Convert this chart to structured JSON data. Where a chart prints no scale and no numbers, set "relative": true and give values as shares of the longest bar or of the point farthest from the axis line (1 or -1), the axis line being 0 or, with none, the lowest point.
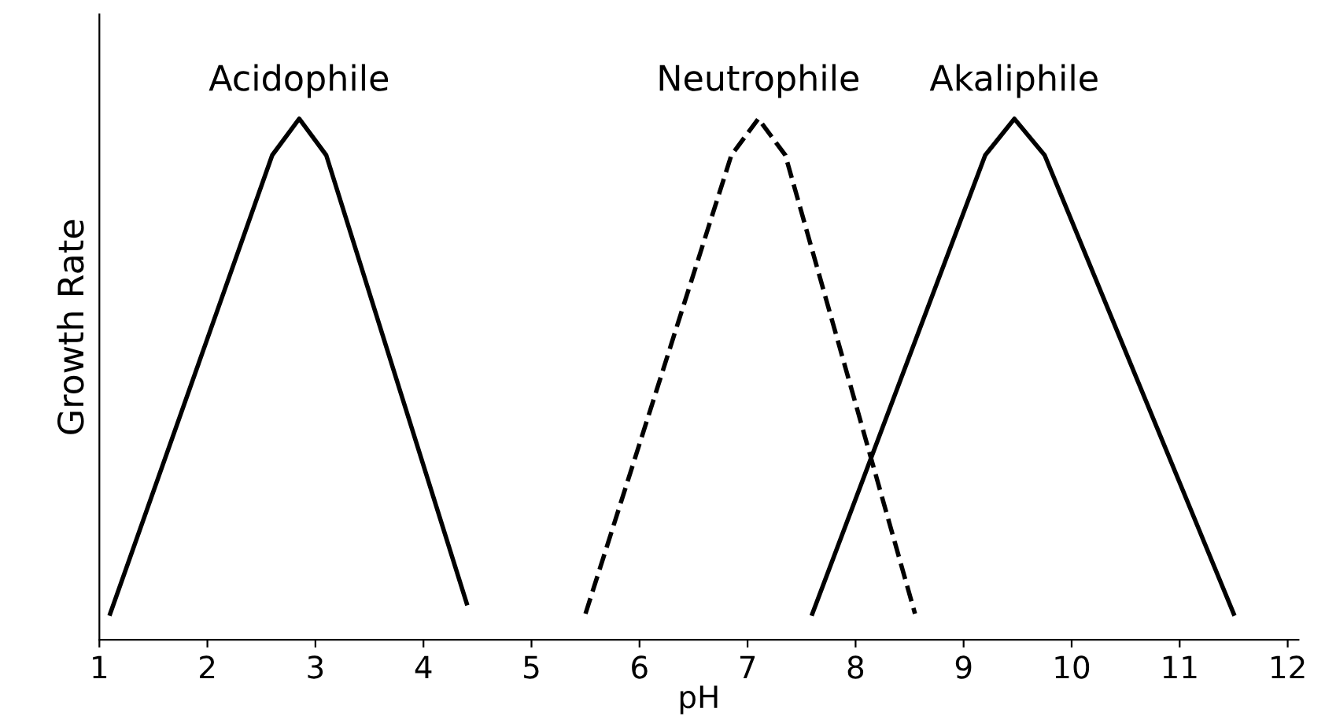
{
  "chart_data": {
    "type": "line",
    "xlabel": "pH",
    "ylabel": "Growth Rate",
    "relative": true,
    "tick_labels": "x",
    "legend": false,
    "grid": false,
    "xlim": [
      1,
      12.1
    ],
    "xticks": [
      1,
      2,
      3,
      4,
      5,
      6,
      7,
      8,
      9,
      10,
      11,
      12
    ],
    "series": [
      {
        "name": "Acidophile",
        "color": "#000000",
        "line_style": "solid",
        "x": [
          1.1,
          2.6,
          2.85,
          3.1,
          4.4
        ],
        "values": [
          0.05,
          0.93,
          1,
          0.93,
          0.07
        ]
      },
      {
        "name": "Neutrophile",
        "color": "#000000",
        "line_style": "dashed",
        "x": [
          5.5,
          6.85,
          7.1,
          7.35,
          8.55
        ],
        "values": [
          0.05,
          0.93,
          1,
          0.93,
          0.05
        ]
      },
      {
        "name": "Akaliphile",
        "color": "#000000",
        "line_style": "solid",
        "x": [
          7.6,
          9.2,
          9.47,
          9.75,
          11.5
        ],
        "values": [
          0.05,
          0.93,
          1,
          0.93,
          0.05
        ]
      }
    ]
  }
}
